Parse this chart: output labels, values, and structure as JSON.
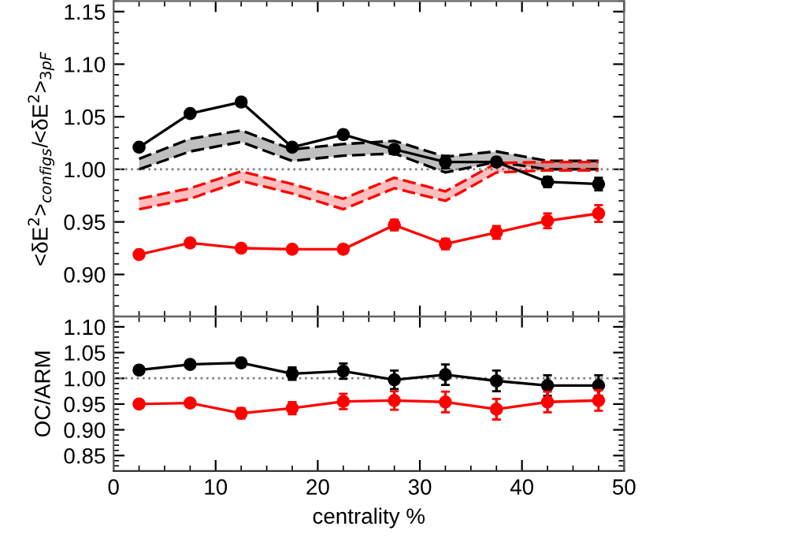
{
  "chart_data": [
    {
      "type": "line",
      "ylabel": "<δE$^{2}$>$_{configs}$/<δE$^{2}$>$_{3pF}$",
      "x": [
        2.5,
        7.5,
        12.5,
        17.5,
        22.5,
        27.5,
        32.5,
        37.5,
        42.5,
        47.5
      ],
      "xlim": [
        0,
        50
      ],
      "xticks": [
        0,
        10,
        20,
        30,
        40,
        50
      ],
      "ylim": [
        0.86,
        1.16
      ],
      "yticks": [
        {
          "value": 0.9,
          "label": "0.90"
        },
        0.95,
        {
          "value": 1.0,
          "label": "1.00"
        },
        1.05,
        {
          "value": 1.1,
          "label": "1.10"
        },
        1.15
      ],
      "tick_labels": "y",
      "marker": "circle",
      "ref_lines": [
        {
          "axis": "y",
          "value": 1.0,
          "color": "#808080",
          "line_style": "dotted"
        }
      ],
      "series": [
        {
          "color": "#000000",
          "values": [
            1.021,
            1.053,
            1.064,
            1.021,
            1.033,
            1.019,
            1.007,
            1.007,
            0.988,
            0.986
          ],
          "errors": [
            0.002,
            0.002,
            0.002,
            0.003,
            0.004,
            0.003,
            0.006,
            0.004,
            0.005,
            0.006
          ]
        },
        {
          "color": "#ff0000",
          "values": [
            0.919,
            0.93,
            0.925,
            0.924,
            0.924,
            0.947,
            0.929,
            0.94,
            0.951,
            0.958
          ],
          "errors": [
            0.002,
            0.002,
            0.002,
            0.003,
            0.004,
            0.005,
            0.005,
            0.006,
            0.007,
            0.008
          ]
        },
        {
          "color": "#000000",
          "line_style": "dashed",
          "marker": "none",
          "values": [
            1.0,
            1.017,
            1.026,
            1.008,
            1.013,
            1.015,
            0.997,
            1.007,
            1.0,
            1.0
          ]
        },
        {
          "color": "#000000",
          "line_style": "dashed",
          "marker": "none",
          "values": [
            1.01,
            1.029,
            1.037,
            1.019,
            1.024,
            1.027,
            1.012,
            1.017,
            1.008,
            1.008
          ],
          "lower": [
            1.0,
            1.017,
            1.026,
            1.008,
            1.013,
            1.015,
            0.997,
            1.007,
            1.0,
            1.0
          ],
          "upper": [
            1.01,
            1.029,
            1.037,
            1.019,
            1.024,
            1.027,
            1.012,
            1.017,
            1.008,
            1.008
          ]
        },
        {
          "color": "#ff0000",
          "line_style": "dashed",
          "marker": "none",
          "values": [
            0.962,
            0.972,
            0.989,
            0.977,
            0.962,
            0.982,
            0.97,
            0.997,
            0.999,
            0.999
          ]
        },
        {
          "color": "#ff0000",
          "line_style": "dashed",
          "marker": "none",
          "values": [
            0.972,
            0.982,
            0.998,
            0.986,
            0.972,
            0.992,
            0.979,
            1.006,
            1.007,
            1.007
          ],
          "lower": [
            0.962,
            0.972,
            0.989,
            0.977,
            0.962,
            0.982,
            0.97,
            0.997,
            0.999,
            0.999
          ],
          "upper": [
            0.972,
            0.982,
            0.998,
            0.986,
            0.972,
            0.992,
            0.979,
            1.006,
            1.007,
            1.007
          ]
        }
      ]
    },
    {
      "type": "line",
      "xlabel": "centrality %",
      "ylabel": "OC/ARM",
      "x": [
        2.5,
        7.5,
        12.5,
        17.5,
        22.5,
        27.5,
        32.5,
        37.5,
        42.5,
        47.5
      ],
      "xlim": [
        0,
        50
      ],
      "xticks": [
        0,
        10,
        20,
        30,
        40,
        50
      ],
      "ylim": [
        0.82,
        1.12
      ],
      "yticks": [
        0.85,
        {
          "value": 0.9,
          "label": "0.90"
        },
        0.95,
        {
          "value": 1.0,
          "label": "1.00"
        },
        1.05,
        {
          "value": 1.1,
          "label": "1.10"
        }
      ],
      "marker": "circle",
      "ref_lines": [
        {
          "axis": "y",
          "value": 1.0,
          "color": "#808080",
          "line_style": "dotted"
        }
      ],
      "series": [
        {
          "color": "#000000",
          "values": [
            1.016,
            1.027,
            1.03,
            1.009,
            1.014,
            0.997,
            1.007,
            0.995,
            0.986,
            0.986
          ],
          "errors": [
            0.004,
            0.006,
            0.008,
            0.012,
            0.015,
            0.018,
            0.02,
            0.02,
            0.02,
            0.02
          ]
        },
        {
          "color": "#ff0000",
          "values": [
            0.95,
            0.952,
            0.932,
            0.942,
            0.955,
            0.957,
            0.954,
            0.94,
            0.954,
            0.957
          ],
          "errors": [
            0.005,
            0.006,
            0.01,
            0.012,
            0.015,
            0.018,
            0.02,
            0.02,
            0.02,
            0.02
          ]
        }
      ]
    }
  ]
}
